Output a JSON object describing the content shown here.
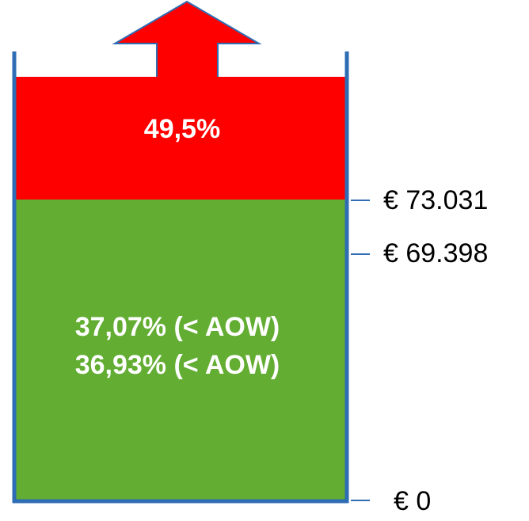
{
  "bands": [
    {
      "label": "49,5%"
    },
    {
      "lines": [
        "37,07% (< AOW)",
        "36,93% (< AOW)"
      ]
    }
  ],
  "levels": [
    "€ 73.031",
    "€ 69.398",
    "€ 0"
  ]
}
